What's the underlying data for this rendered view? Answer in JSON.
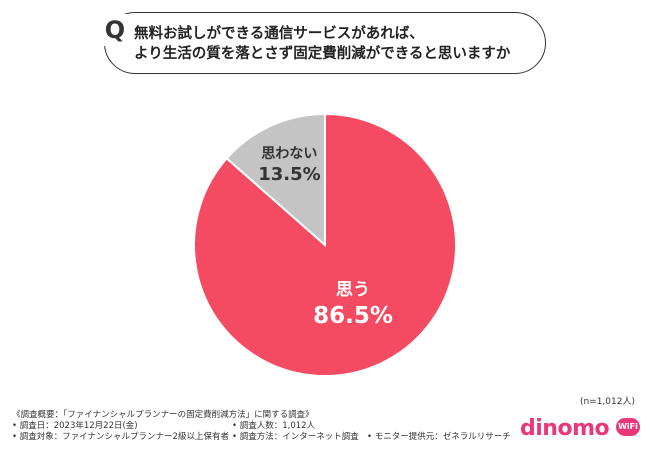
{
  "question": {
    "mark": "Q",
    "line1": "無料お試しができる通信サービスがあれば、",
    "line2": "より生活の質を落とさず固定費削減ができると思いますか"
  },
  "chart_data": {
    "type": "pie",
    "slices": [
      {
        "label": "思う",
        "value": 86.5,
        "value_text": "86.5%",
        "color": "#f54b62",
        "text_color": "#ffffff"
      },
      {
        "label": "思わない",
        "value": 13.5,
        "value_text": "13.5%",
        "color": "#c4c4c4",
        "text_color": "#333333"
      }
    ],
    "start": "12 o'clock",
    "direction": "clockwise"
  },
  "n_label": "(n=1,012人)",
  "footer": {
    "title": "《調査概要：「ファイナンシャルプランナーの固定費削減方法」に関する調査》",
    "date": "• 調査日：2023年12月22日(金)",
    "people": "• 調査人数：1,012人",
    "target": "• 調査対象：ファイナンシャルプランナー2級以上保有者",
    "method": "• 調査方法：インターネット調査",
    "monitor": "• モニター提供元：ゼネラルリサーチ"
  },
  "logo": {
    "word": "dinomo",
    "badge": "WiFi"
  }
}
